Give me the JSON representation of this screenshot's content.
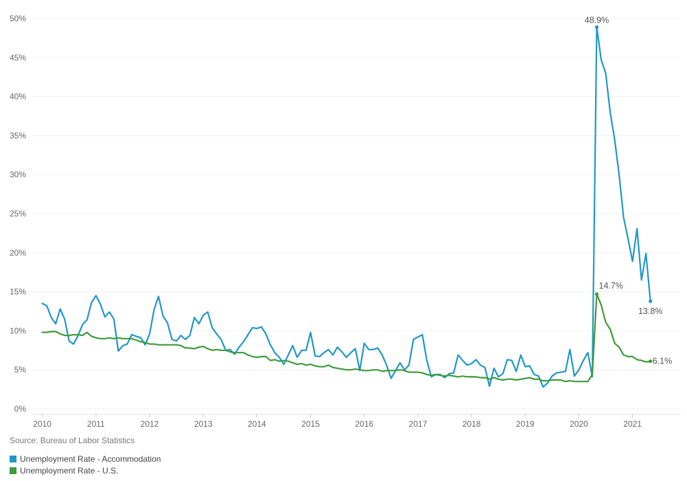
{
  "chart_data": {
    "type": "line",
    "title": "",
    "xlabel": "",
    "ylabel": "",
    "ylim": [
      0,
      50
    ],
    "xlim": [
      2009.8,
      2021.9
    ],
    "grid": true,
    "y_ticks": [
      "0%",
      "5%",
      "10%",
      "15%",
      "20%",
      "25%",
      "30%",
      "35%",
      "40%",
      "45%",
      "50%"
    ],
    "x_ticks": [
      "2010",
      "2011",
      "2012",
      "2013",
      "2014",
      "2015",
      "2016",
      "2017",
      "2018",
      "2019",
      "2020",
      "2021"
    ],
    "legend_position": "bottom-left",
    "series": [
      {
        "name": "Unemployment Rate - Accommodation",
        "color": "#1F97C7",
        "values": [
          13.5,
          13.2,
          11.7,
          10.9,
          12.8,
          11.5,
          8.7,
          8.3,
          9.4,
          10.8,
          11.4,
          13.6,
          14.5,
          13.4,
          11.8,
          12.4,
          11.5,
          7.4,
          8.1,
          8.3,
          9.5,
          9.3,
          9.1,
          8.2,
          9.6,
          12.7,
          14.4,
          11.9,
          11.0,
          8.9,
          8.7,
          9.4,
          8.9,
          9.4,
          11.7,
          10.9,
          12.0,
          12.4,
          10.4,
          9.6,
          8.9,
          7.5,
          7.6,
          7.0,
          7.9,
          8.6,
          9.5,
          10.4,
          10.3,
          10.5,
          9.6,
          8.2,
          7.2,
          6.6,
          5.7,
          6.9,
          8.1,
          6.6,
          7.5,
          7.5,
          9.8,
          6.8,
          6.7,
          7.2,
          7.6,
          6.9,
          7.9,
          7.3,
          6.6,
          7.2,
          7.7,
          4.9,
          8.4,
          7.6,
          7.6,
          7.8,
          6.9,
          5.6,
          3.9,
          4.9,
          5.9,
          5.0,
          5.6,
          8.9,
          9.2,
          9.5,
          6.2,
          4.1,
          4.4,
          4.4,
          4.0,
          4.5,
          4.6,
          6.9,
          6.2,
          5.6,
          5.8,
          6.3,
          5.6,
          5.3,
          2.9,
          5.2,
          4.1,
          4.5,
          6.3,
          6.2,
          4.8,
          6.9,
          5.4,
          5.5,
          4.4,
          4.2,
          2.8,
          3.3,
          4.2,
          4.6,
          4.7,
          4.8,
          7.6,
          4.2,
          5.0,
          6.2,
          7.2,
          4.1,
          48.9,
          44.7,
          43.0,
          38.0,
          34.5,
          30.0,
          24.5,
          21.8,
          18.9,
          23.1,
          16.5,
          19.9,
          13.8
        ],
        "end_label": "13.8%",
        "peak_label": "48.9%"
      },
      {
        "name": "Unemployment Rate - U.S.",
        "color": "#3D9A3A",
        "values": [
          9.8,
          9.8,
          9.9,
          9.9,
          9.6,
          9.4,
          9.4,
          9.5,
          9.5,
          9.4,
          9.8,
          9.3,
          9.1,
          9.0,
          9.0,
          9.1,
          9.0,
          9.1,
          9.0,
          9.0,
          9.0,
          8.8,
          8.6,
          8.5,
          8.3,
          8.3,
          8.2,
          8.2,
          8.2,
          8.2,
          8.2,
          8.1,
          7.8,
          7.8,
          7.7,
          7.9,
          8.0,
          7.7,
          7.5,
          7.6,
          7.5,
          7.5,
          7.3,
          7.2,
          7.2,
          7.2,
          6.9,
          6.7,
          6.6,
          6.7,
          6.7,
          6.2,
          6.3,
          6.1,
          6.2,
          6.1,
          5.9,
          5.7,
          5.8,
          5.6,
          5.7,
          5.5,
          5.4,
          5.4,
          5.6,
          5.3,
          5.2,
          5.1,
          5.0,
          5.0,
          5.1,
          5.0,
          4.9,
          4.9,
          5.0,
          5.0,
          4.8,
          4.9,
          4.9,
          4.9,
          5.0,
          4.9,
          4.7,
          4.7,
          4.7,
          4.6,
          4.4,
          4.3,
          4.4,
          4.3,
          4.2,
          4.3,
          4.2,
          4.1,
          4.2,
          4.1,
          4.1,
          4.1,
          4.0,
          4.0,
          3.8,
          4.0,
          3.8,
          3.7,
          3.8,
          3.8,
          3.7,
          3.8,
          3.9,
          4.0,
          3.8,
          3.8,
          3.6,
          3.6,
          3.7,
          3.7,
          3.7,
          3.5,
          3.6,
          3.5,
          3.5,
          3.5,
          3.5,
          4.4,
          14.7,
          13.3,
          11.1,
          10.2,
          8.4,
          7.9,
          6.9,
          6.7,
          6.7,
          6.3,
          6.2,
          6.0,
          6.1
        ],
        "end_label": "6.1%",
        "peak_label": "14.7%"
      }
    ]
  },
  "source": "Source: Bureau of Labor Statistics"
}
